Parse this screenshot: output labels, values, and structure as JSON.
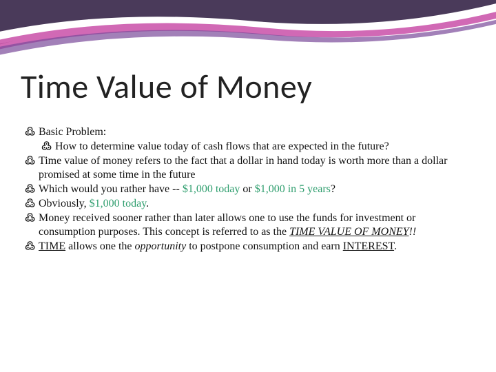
{
  "colors": {
    "title": "#222222",
    "body": "#111111",
    "green": "#2f9e6e",
    "swoosh_dark": "#4a3a5a",
    "swoosh_purple": "#7a4a9a",
    "swoosh_magenta": "#c94fa8",
    "swoosh_white": "#ffffff"
  },
  "fonts": {
    "title_size": 48,
    "body_size": 16
  },
  "title": "Time Value of Money",
  "bullets": [
    {
      "level": 1,
      "spans": [
        {
          "t": "Basic Problem:"
        }
      ]
    },
    {
      "level": 2,
      "spans": [
        {
          "t": "How to determine value today of cash flows that are expected in the future?"
        }
      ]
    },
    {
      "level": 1,
      "spans": [
        {
          "t": "Time value of money refers to the fact that a dollar in hand today is worth more than a dollar promised at some time in the future"
        }
      ]
    },
    {
      "level": 1,
      "spans": [
        {
          "t": "Which would you rather have -- "
        },
        {
          "t": "$1,000 today",
          "color": "green"
        },
        {
          "t": " or "
        },
        {
          "t": "$1,000 in 5 years",
          "color": "green"
        },
        {
          "t": "?"
        }
      ]
    },
    {
      "level": 1,
      "spans": [
        {
          "t": "Obviously, "
        },
        {
          "t": "$1,000 today",
          "color": "green"
        },
        {
          "t": "."
        }
      ]
    },
    {
      "level": 1,
      "spans": [
        {
          "t": "Money received sooner rather than later allows one to use the funds for investment or consumption purposes.  This concept is referred to as the  "
        },
        {
          "t": "TIME VALUE OF MONEY",
          "italic": true,
          "underline": true
        },
        {
          "t": "!!",
          "italic": true
        }
      ]
    },
    {
      "level": 1,
      "spans": [
        {
          "t": "TIME",
          "underline": true
        },
        {
          "t": " allows one the "
        },
        {
          "t": "opportunity",
          "italic": true
        },
        {
          "t": " to postpone consumption and earn "
        },
        {
          "t": "INTEREST",
          "underline": true
        },
        {
          "t": "."
        }
      ]
    }
  ]
}
